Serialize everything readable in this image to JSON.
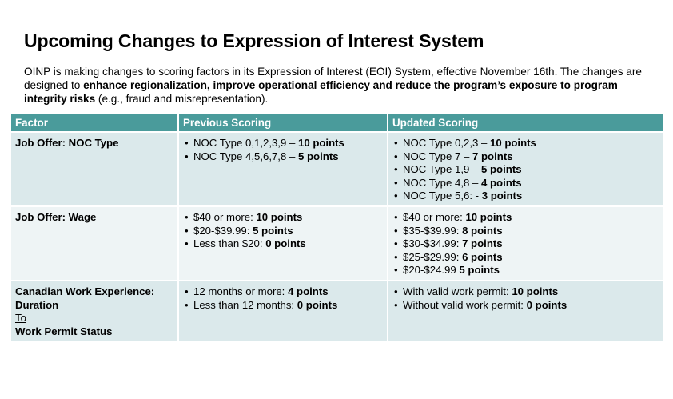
{
  "title": "Upcoming Changes to Expression of Interest System",
  "intro": {
    "part1": "OINP is making changes to scoring factors in its Expression of Interest (EOI) System, effective November 16th.  The changes are designed to ",
    "bold": "enhance regionalization, improve operational efficiency and reduce the program’s exposure to program integrity risks",
    "part2": " (e.g., fraud and misrepresentation)."
  },
  "table": {
    "headers": [
      "Factor",
      "Previous Scoring",
      "Updated Scoring"
    ],
    "rows": [
      {
        "factor": "Job Offer: NOC Type",
        "previous": [
          {
            "text": "NOC Type 0,1,2,3,9 – ",
            "points": "10 points"
          },
          {
            "text": "NOC Type 4,5,6,7,8 – ",
            "points": "5 points"
          }
        ],
        "updated": [
          {
            "text": "NOC Type 0,2,3 – ",
            "points": "10 points"
          },
          {
            "text": "NOC Type 7 – ",
            "points": "7 points"
          },
          {
            "text": "NOC Type 1,9 – ",
            "points": "5 points"
          },
          {
            "text": "NOC Type 4,8 – ",
            "points": "4 points"
          },
          {
            "text": "NOC Type 5,6: - ",
            "points": "3 points"
          }
        ]
      },
      {
        "factor": "Job Offer: Wage",
        "previous": [
          {
            "text": "$40 or more: ",
            "points": "10 points"
          },
          {
            "text": "$20-$39.99: ",
            "points": "5 points"
          },
          {
            "text": "Less than $20: ",
            "points": "0 points"
          }
        ],
        "updated": [
          {
            "text": "$40 or more: ",
            "points": "10 points"
          },
          {
            "text": "$35-$39.99: ",
            "points": "8 points"
          },
          {
            "text": "$30-$34.99: ",
            "points": "7 points"
          },
          {
            "text": "$25-$29.99: ",
            "points": "6 points"
          },
          {
            "text": "$20-$24.99 ",
            "points": "5 points"
          }
        ]
      },
      {
        "factor_line1": "Canadian Work Experience:",
        "factor_line2": "Duration",
        "factor_line3": "To",
        "factor_line4": "Work Permit Status",
        "previous": [
          {
            "text": "12 months or more: ",
            "points": "4 points"
          },
          {
            "text": "Less than 12 months: ",
            "points": "0 points"
          }
        ],
        "updated": [
          {
            "text": "With valid work permit: ",
            "points": "10 points"
          },
          {
            "text": "Without valid work permit: ",
            "points": "0 points"
          }
        ]
      }
    ]
  }
}
